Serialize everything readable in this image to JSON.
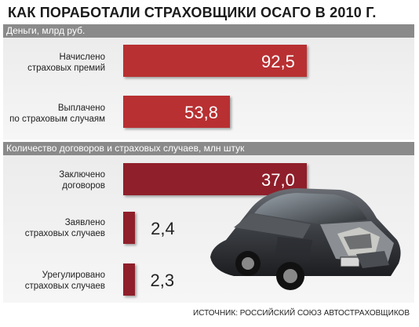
{
  "title": "КАК ПОРАБОТАЛИ СТРАХОВЩИКИ ОСАГО В 2010 Г.",
  "source": "ИСТОЧНИК: РОССИЙСКИЙ СОЮЗ АВТОСТРАХОВЩИКОВ",
  "colors": {
    "bar_money": "#b83032",
    "bar_count": "#8f1f2a",
    "section_bar": "#8a8a8a"
  },
  "chart_data": [
    {
      "type": "bar",
      "title": "Деньги, млрд руб.",
      "categories": [
        "Начислено\nстраховых премий",
        "Выплачено\nпо страховым случаям"
      ],
      "values": [
        92.5,
        53.8
      ],
      "value_labels": [
        "92,5",
        "53,8"
      ],
      "xlim": [
        0,
        100
      ]
    },
    {
      "type": "bar",
      "title": "Количество договоров и страховых случаев, млн штук",
      "categories": [
        "Заключено\nдоговоров",
        "Заявлено\nстраховых случаев",
        "Урегулировано\nстраховых случаев"
      ],
      "values": [
        37.0,
        2.4,
        2.3
      ],
      "value_labels": [
        "37,0",
        "2,4",
        "2,3"
      ],
      "xlim": [
        0,
        40
      ]
    }
  ]
}
